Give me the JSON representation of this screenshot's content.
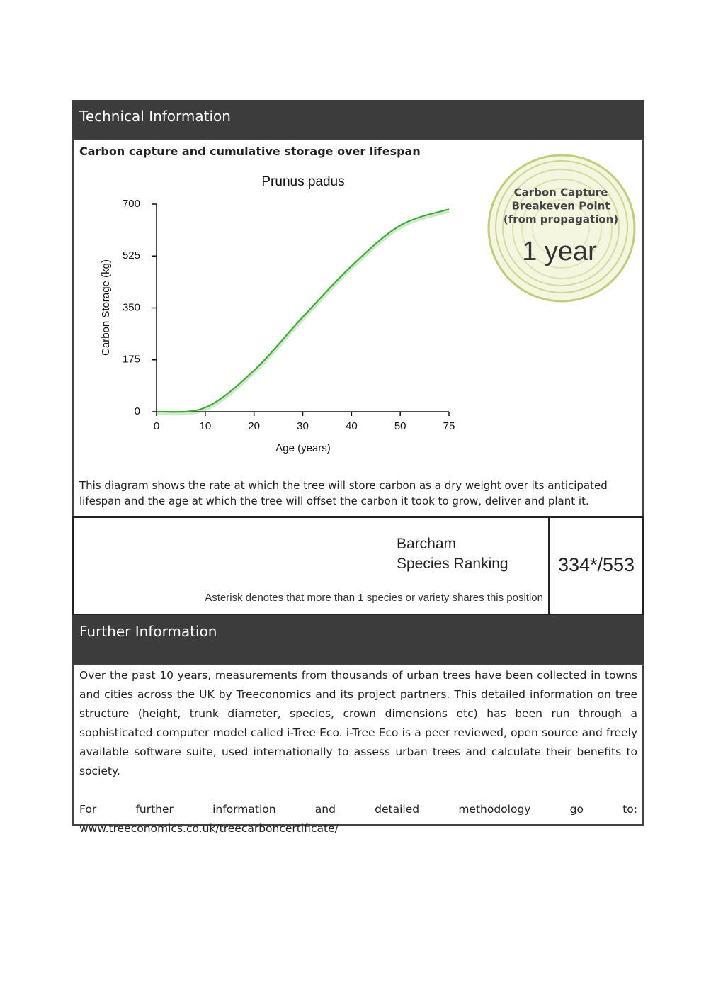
{
  "header": {
    "title": "Technical Information"
  },
  "chart_section": {
    "heading": "Carbon capture and cumulative storage over lifespan",
    "caption": "This diagram shows the rate at which the tree will store carbon as a dry weight over its anticipated lifespan and the age at which the tree will offset the carbon it took to grow, deliver and plant it."
  },
  "chart_data": {
    "type": "line",
    "title": "Prunus padus",
    "x_label": "Age (years)",
    "y_label": "Carbon Storage (kg)",
    "categories": [
      "0",
      "10",
      "20",
      "30",
      "40",
      "50",
      "75"
    ],
    "values": [
      0,
      14,
      139,
      319,
      491,
      628,
      683
    ],
    "color": "#3aa832",
    "ylim": [
      0,
      700
    ],
    "yticks": [
      0,
      175,
      350,
      525,
      700
    ],
    "grid": false
  },
  "breakeven": {
    "label_lines": [
      "Carbon Capture",
      "Breakeven Point",
      "(from propagation)"
    ],
    "value": "1 year"
  },
  "ranking": {
    "label_lines": [
      "Barcham",
      "Species Ranking"
    ],
    "value": "334*/553",
    "note": "Asterisk denotes that more than 1 species or variety shares this position"
  },
  "further": {
    "title": "Further Information",
    "paragraphs": [
      "Over the past 10 years, measurements from thousands of urban trees have been collected in towns and cities across the UK by Treeconomics and its project partners. This detailed information on tree structure (height, trunk diameter, species, crown dimensions etc) has been run through a sophisticated computer model called i-Tree Eco. i-Tree Eco is a peer reviewed, open source and freely available software suite, used internationally to assess urban trees and calculate their benefits to society.",
      "For further information and detailed methodology go to: www.treeconomics.co.uk/treecarboncertificate/"
    ]
  }
}
